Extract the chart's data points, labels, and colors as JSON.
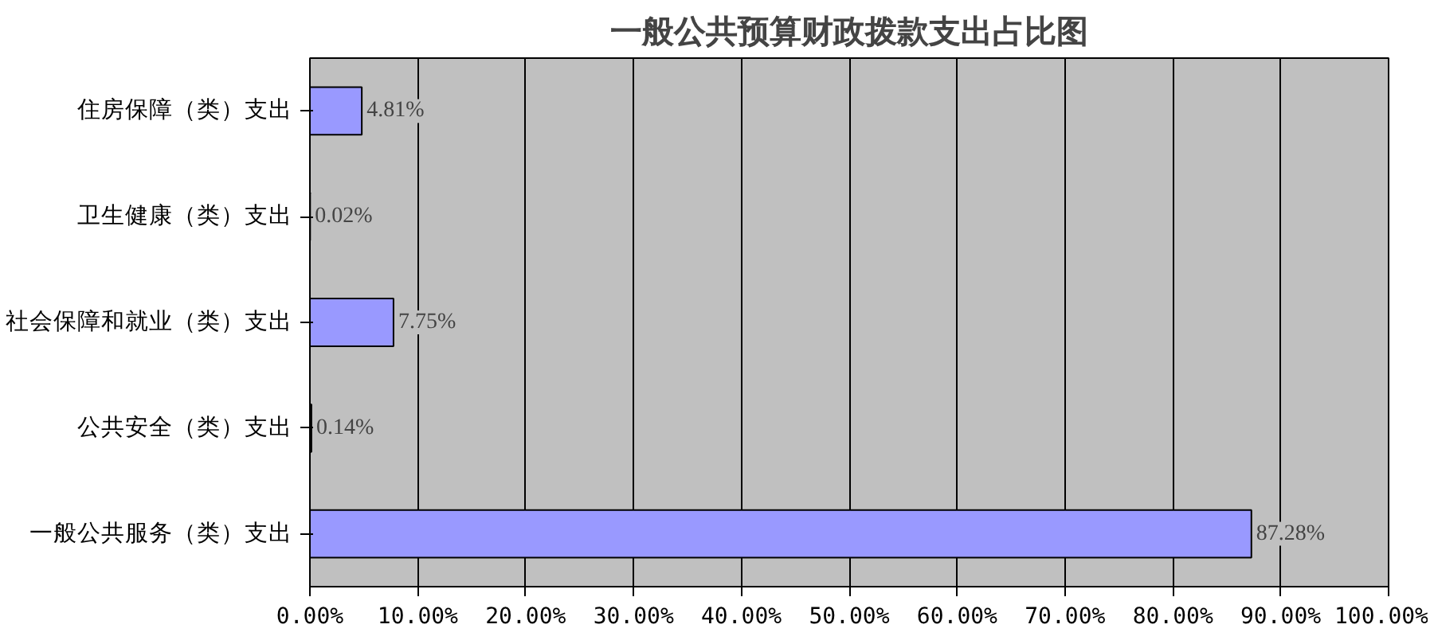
{
  "chart_data": {
    "type": "bar",
    "orientation": "horizontal",
    "title": "一般公共预算财政拨款支出占比图",
    "categories": [
      "住房保障（类）支出",
      "卫生健康（类）支出",
      "社会保障和就业（类）支出",
      "公共安全（类）支出",
      "一般公共服务（类）支出"
    ],
    "values": [
      4.81,
      0.02,
      7.75,
      0.14,
      87.28
    ],
    "value_labels": [
      "4.81%",
      "0.02%",
      "7.75%",
      "0.14%",
      "87.28%"
    ],
    "color": "#9999ff",
    "xlim": [
      0,
      100
    ],
    "xticks": [
      {
        "value": 0,
        "label": "0.00%"
      },
      {
        "value": 10,
        "label": "10.00%"
      },
      {
        "value": 20,
        "label": "20.00%"
      },
      {
        "value": 30,
        "label": "30.00%"
      },
      {
        "value": 40,
        "label": "40.00%"
      },
      {
        "value": 50,
        "label": "50.00%"
      },
      {
        "value": 60,
        "label": "60.00%"
      },
      {
        "value": 70,
        "label": "70.00%"
      },
      {
        "value": 80,
        "label": "80.00%"
      },
      {
        "value": 90,
        "label": "90.00%"
      },
      {
        "value": 100,
        "label": "100.00%"
      }
    ],
    "grid": "x"
  }
}
